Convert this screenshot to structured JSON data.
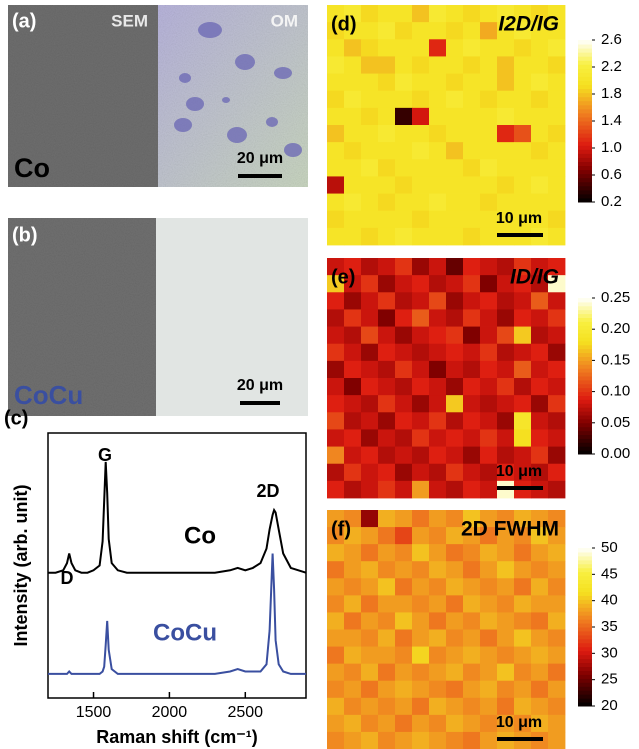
{
  "image_panels": [
    {
      "label": "(a)",
      "left": "SEM",
      "right": "OM",
      "sample": "Co",
      "scale_bar": "20 μm"
    },
    {
      "label": "(b)",
      "sample": "CoCu",
      "scale_bar": "20 μm"
    }
  ],
  "chart_data": [
    {
      "type": "line",
      "label": "(c)",
      "xlabel": "Raman shift (cm⁻¹)",
      "ylabel": "Intensity (arb. unit)",
      "annotations": [
        "D",
        "G",
        "2D"
      ],
      "xlim": [
        1200,
        2900
      ],
      "xticks": [
        1500,
        2000,
        2500
      ],
      "ylim": [
        0,
        1.1
      ],
      "x": [
        1200,
        1250,
        1300,
        1325,
        1340,
        1355,
        1380,
        1420,
        1460,
        1500,
        1540,
        1560,
        1570,
        1580,
        1590,
        1600,
        1620,
        1660,
        1720,
        1800,
        1900,
        2000,
        2100,
        2200,
        2300,
        2400,
        2450,
        2500,
        2550,
        2600,
        2640,
        2660,
        2680,
        2690,
        2700,
        2720,
        2750,
        2800,
        2850,
        2900
      ],
      "series": [
        {
          "name": "Co",
          "color": "#000000",
          "values": [
            0.52,
            0.52,
            0.53,
            0.56,
            0.6,
            0.56,
            0.53,
            0.52,
            0.52,
            0.53,
            0.55,
            0.65,
            0.82,
            0.98,
            0.85,
            0.66,
            0.56,
            0.53,
            0.52,
            0.52,
            0.52,
            0.52,
            0.52,
            0.52,
            0.52,
            0.53,
            0.54,
            0.53,
            0.54,
            0.56,
            0.62,
            0.7,
            0.76,
            0.78,
            0.77,
            0.7,
            0.6,
            0.54,
            0.53,
            0.52
          ]
        },
        {
          "name": "CoCu",
          "color": "#3a4fa0",
          "values": [
            0.1,
            0.1,
            0.1,
            0.1,
            0.11,
            0.1,
            0.1,
            0.1,
            0.1,
            0.1,
            0.1,
            0.11,
            0.13,
            0.22,
            0.32,
            0.2,
            0.12,
            0.1,
            0.1,
            0.1,
            0.1,
            0.1,
            0.1,
            0.1,
            0.1,
            0.11,
            0.12,
            0.11,
            0.11,
            0.11,
            0.14,
            0.28,
            0.6,
            0.45,
            0.24,
            0.14,
            0.11,
            0.1,
            0.1,
            0.1
          ]
        }
      ]
    },
    {
      "type": "heatmap",
      "label": "(d)",
      "title": "I2D/IG",
      "scale_bar": "10 μm",
      "colormap": "hot",
      "zlim": [
        0.2,
        2.6
      ],
      "zticks": [
        0.2,
        0.6,
        {
          "value": 1,
          "label": "1.0"
        },
        1.4,
        1.8,
        2.2,
        2.6
      ],
      "values": [
        [
          2.0,
          2.1,
          1.9,
          2.0,
          2.0,
          1.8,
          2.1,
          2.0,
          1.9,
          2.0,
          2.1,
          2.0,
          1.9,
          2.0
        ],
        [
          1.9,
          2.0,
          2.0,
          2.1,
          1.9,
          2.0,
          2.0,
          1.9,
          2.0,
          1.7,
          2.0,
          2.1,
          2.0,
          2.0
        ],
        [
          2.0,
          1.8,
          1.9,
          2.0,
          2.0,
          2.0,
          1.1,
          2.0,
          2.1,
          2.0,
          2.0,
          1.9,
          2.0,
          2.1
        ],
        [
          2.1,
          2.0,
          1.8,
          1.8,
          2.0,
          1.9,
          2.0,
          2.0,
          1.9,
          2.0,
          1.8,
          2.0,
          2.0,
          1.9
        ],
        [
          2.0,
          2.0,
          2.0,
          1.9,
          2.1,
          2.0,
          2.0,
          1.9,
          2.0,
          2.0,
          1.8,
          2.0,
          2.1,
          2.0
        ],
        [
          1.9,
          2.1,
          2.0,
          2.0,
          2.0,
          1.9,
          2.0,
          2.1,
          2.0,
          1.9,
          2.0,
          2.0,
          1.9,
          2.0
        ],
        [
          2.0,
          2.0,
          1.9,
          2.0,
          0.4,
          1.0,
          2.0,
          2.0,
          2.0,
          2.0,
          2.1,
          2.0,
          2.0,
          2.0
        ],
        [
          1.8,
          2.0,
          2.0,
          2.1,
          2.0,
          2.0,
          1.9,
          2.0,
          2.0,
          2.0,
          1.1,
          1.3,
          2.0,
          1.9
        ],
        [
          2.0,
          1.9,
          2.0,
          2.0,
          2.0,
          2.1,
          2.0,
          1.8,
          2.0,
          2.0,
          2.0,
          2.0,
          1.9,
          2.0
        ],
        [
          2.0,
          2.0,
          2.1,
          1.9,
          2.0,
          2.0,
          2.0,
          2.0,
          1.9,
          2.1,
          2.0,
          2.0,
          2.0,
          2.0
        ],
        [
          0.9,
          2.0,
          2.0,
          2.0,
          1.9,
          2.0,
          2.0,
          2.0,
          2.0,
          2.0,
          1.9,
          2.0,
          2.1,
          2.0
        ],
        [
          2.0,
          2.1,
          2.0,
          1.9,
          2.0,
          2.0,
          2.1,
          2.0,
          2.0,
          1.9,
          2.0,
          2.0,
          2.0,
          2.0
        ],
        [
          1.9,
          2.0,
          2.0,
          2.0,
          2.0,
          1.9,
          2.0,
          2.0,
          2.0,
          2.0,
          2.0,
          2.0,
          2.0,
          1.9
        ],
        [
          2.0,
          2.0,
          1.9,
          2.0,
          2.1,
          2.0,
          2.0,
          2.0,
          1.9,
          2.0,
          2.0,
          2.0,
          2.1,
          2.0
        ]
      ]
    },
    {
      "type": "heatmap",
      "label": "(e)",
      "title": "ID/IG",
      "scale_bar": "10 μm",
      "colormap": "hot",
      "zlim": [
        0,
        0.25
      ],
      "zticks": [
        {
          "value": 0,
          "label": "0.00"
        },
        0.05,
        {
          "value": 0.1,
          "label": "0.10"
        },
        0.15,
        {
          "value": 0.2,
          "label": "0.20"
        },
        0.25
      ],
      "values": [
        [
          0.08,
          0.09,
          0.07,
          0.08,
          0.1,
          0.06,
          0.08,
          0.04,
          0.09,
          0.08,
          0.07,
          0.1,
          0.08,
          0.09
        ],
        [
          0.17,
          0.08,
          0.1,
          0.06,
          0.08,
          0.09,
          0.07,
          0.08,
          0.1,
          0.05,
          0.08,
          0.09,
          0.07,
          0.24
        ],
        [
          0.09,
          0.06,
          0.08,
          0.1,
          0.07,
          0.08,
          0.11,
          0.06,
          0.08,
          0.09,
          0.07,
          0.08,
          0.12,
          0.08
        ],
        [
          0.07,
          0.1,
          0.08,
          0.05,
          0.09,
          0.12,
          0.08,
          0.07,
          0.1,
          0.08,
          0.06,
          0.09,
          0.08,
          0.1
        ],
        [
          0.08,
          0.07,
          0.11,
          0.08,
          0.06,
          0.08,
          0.09,
          0.1,
          0.05,
          0.08,
          0.11,
          0.17,
          0.07,
          0.08
        ],
        [
          0.1,
          0.08,
          0.06,
          0.09,
          0.08,
          0.07,
          0.08,
          0.09,
          0.08,
          0.1,
          0.07,
          0.08,
          0.09,
          0.06
        ],
        [
          0.06,
          0.09,
          0.08,
          0.07,
          0.1,
          0.08,
          0.05,
          0.08,
          0.07,
          0.09,
          0.08,
          0.12,
          0.08,
          0.09
        ],
        [
          0.08,
          0.05,
          0.09,
          0.08,
          0.07,
          0.09,
          0.08,
          0.06,
          0.09,
          0.08,
          0.1,
          0.07,
          0.09,
          0.08
        ],
        [
          0.09,
          0.08,
          0.07,
          0.1,
          0.08,
          0.06,
          0.08,
          0.17,
          0.08,
          0.07,
          0.08,
          0.09,
          0.06,
          0.1
        ],
        [
          0.11,
          0.07,
          0.08,
          0.06,
          0.09,
          0.08,
          0.1,
          0.07,
          0.09,
          0.08,
          0.06,
          0.19,
          0.08,
          0.07
        ],
        [
          0.08,
          0.09,
          0.06,
          0.08,
          0.07,
          0.1,
          0.08,
          0.09,
          0.08,
          0.1,
          0.08,
          0.18,
          0.09,
          0.08
        ],
        [
          0.14,
          0.08,
          0.09,
          0.07,
          0.08,
          0.07,
          0.09,
          0.08,
          0.06,
          0.09,
          0.07,
          0.08,
          0.1,
          0.06
        ],
        [
          0.07,
          0.1,
          0.08,
          0.09,
          0.06,
          0.08,
          0.07,
          0.1,
          0.08,
          0.07,
          0.09,
          0.08,
          0.07,
          0.09
        ],
        [
          0.09,
          0.07,
          0.08,
          0.1,
          0.08,
          0.15,
          0.08,
          0.07,
          0.09,
          0.08,
          0.24,
          0.09,
          0.08,
          0.07
        ]
      ]
    },
    {
      "type": "heatmap",
      "label": "(f)",
      "title": "2D FWHM",
      "scale_bar": "10 μm",
      "colormap": "hot",
      "zlim": [
        20,
        50
      ],
      "zticks": [
        20,
        25,
        30,
        35,
        40,
        45,
        50
      ],
      "values": [
        [
          38,
          37,
          27,
          39,
          38,
          36,
          38,
          37,
          40,
          38,
          37,
          39,
          38,
          37
        ],
        [
          37,
          39,
          38,
          36,
          33,
          38,
          37,
          39,
          38,
          36,
          38,
          37,
          40,
          38
        ],
        [
          39,
          38,
          36,
          38,
          37,
          40,
          38,
          36,
          37,
          39,
          38,
          36,
          38,
          39
        ],
        [
          36,
          38,
          39,
          37,
          38,
          37,
          39,
          38,
          36,
          38,
          40,
          38,
          37,
          38
        ],
        [
          38,
          37,
          38,
          40,
          36,
          38,
          37,
          39,
          38,
          37,
          38,
          36,
          39,
          37
        ],
        [
          37,
          39,
          36,
          38,
          38,
          37,
          38,
          36,
          39,
          38,
          37,
          39,
          38,
          38
        ],
        [
          39,
          36,
          38,
          37,
          40,
          38,
          36,
          38,
          37,
          39,
          38,
          37,
          36,
          39
        ],
        [
          38,
          38,
          37,
          39,
          36,
          38,
          39,
          37,
          38,
          36,
          38,
          40,
          38,
          37
        ],
        [
          36,
          39,
          38,
          38,
          37,
          41,
          37,
          38,
          39,
          38,
          37,
          38,
          39,
          38
        ],
        [
          38,
          37,
          39,
          36,
          38,
          37,
          38,
          39,
          37,
          38,
          40,
          37,
          38,
          36
        ],
        [
          37,
          38,
          36,
          38,
          39,
          38,
          37,
          36,
          38,
          39,
          37,
          38,
          36,
          38
        ],
        [
          39,
          37,
          38,
          37,
          38,
          36,
          39,
          38,
          37,
          38,
          36,
          39,
          38,
          37
        ],
        [
          38,
          39,
          37,
          38,
          36,
          38,
          37,
          39,
          38,
          37,
          38,
          37,
          39,
          38
        ],
        [
          37,
          38,
          39,
          37,
          38,
          39,
          38,
          37,
          36,
          38,
          39,
          38,
          37,
          38
        ]
      ]
    }
  ]
}
